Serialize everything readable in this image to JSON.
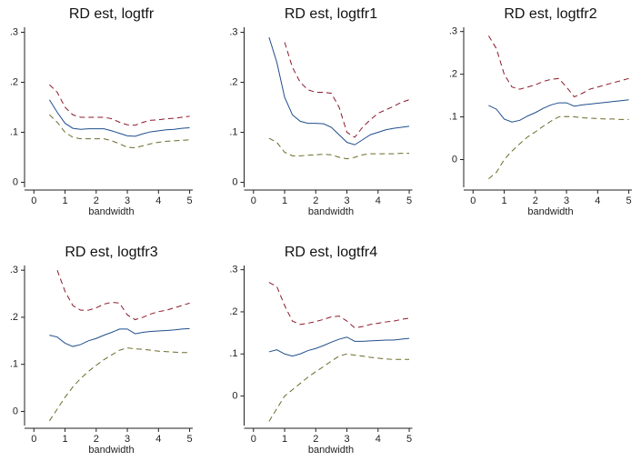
{
  "chart_data": [
    {
      "type": "line",
      "title": "RD est, logtfr",
      "xlabel": "bandwidth",
      "x": [
        0.5,
        0.75,
        1,
        1.25,
        1.5,
        1.75,
        2,
        2.25,
        2.5,
        2.75,
        3,
        3.25,
        3.5,
        3.75,
        4,
        4.25,
        4.5,
        4.75,
        5
      ],
      "xlim": [
        -0.3,
        5.1
      ],
      "xticks": [
        0,
        1,
        2,
        3,
        4,
        5
      ],
      "ylim": [
        -0.01,
        0.31
      ],
      "yticks": [
        0,
        {
          "value": 0.1,
          "label": ".1"
        },
        {
          "value": 0.2,
          "label": ".2"
        },
        {
          "value": 0.3,
          "label": ".3"
        }
      ],
      "series": [
        {
          "color": "#8b1a2b",
          "dash": true,
          "values": [
            0.195,
            0.18,
            0.15,
            0.135,
            0.13,
            0.13,
            0.13,
            0.13,
            0.127,
            0.12,
            0.115,
            0.114,
            0.12,
            0.124,
            0.125,
            0.127,
            0.128,
            0.13,
            0.132
          ]
        },
        {
          "color": "#1f4e8c",
          "dash": false,
          "values": [
            0.165,
            0.14,
            0.118,
            0.108,
            0.106,
            0.107,
            0.107,
            0.107,
            0.103,
            0.098,
            0.093,
            0.092,
            0.097,
            0.101,
            0.103,
            0.105,
            0.106,
            0.108,
            0.109
          ]
        },
        {
          "color": "#6b6b2a",
          "dash": true,
          "values": [
            0.135,
            0.12,
            0.1,
            0.09,
            0.087,
            0.087,
            0.087,
            0.087,
            0.083,
            0.077,
            0.07,
            0.069,
            0.073,
            0.077,
            0.08,
            0.082,
            0.083,
            0.084,
            0.085
          ]
        }
      ]
    },
    {
      "type": "line",
      "title": "RD est, logtfr1",
      "xlabel": "bandwidth",
      "x": [
        0.5,
        0.75,
        1,
        1.25,
        1.5,
        1.75,
        2,
        2.25,
        2.5,
        2.75,
        3,
        3.25,
        3.5,
        3.75,
        4,
        4.25,
        4.5,
        4.75,
        5
      ],
      "xlim": [
        -0.3,
        5.1
      ],
      "xticks": [
        0,
        1,
        2,
        3,
        4,
        5
      ],
      "ylim": [
        -0.01,
        0.31
      ],
      "yticks": [
        0,
        {
          "value": 0.1,
          "label": ".1"
        },
        {
          "value": 0.2,
          "label": ".2"
        },
        {
          "value": 0.3,
          "label": ".3"
        }
      ],
      "series": [
        {
          "color": "#8b1a2b",
          "dash": true,
          "values": [
            null,
            null,
            0.28,
            0.23,
            0.2,
            0.185,
            0.18,
            0.18,
            0.178,
            0.15,
            0.1,
            0.09,
            0.11,
            0.125,
            0.138,
            0.145,
            0.152,
            0.16,
            0.165
          ]
        },
        {
          "color": "#1f4e8c",
          "dash": false,
          "values": [
            0.29,
            0.24,
            0.17,
            0.135,
            0.122,
            0.118,
            0.118,
            0.117,
            0.11,
            0.095,
            0.08,
            0.075,
            0.085,
            0.095,
            0.1,
            0.105,
            0.108,
            0.11,
            0.112
          ]
        },
        {
          "color": "#6b6b2a",
          "dash": true,
          "values": [
            0.088,
            0.08,
            0.06,
            0.053,
            0.053,
            0.054,
            0.055,
            0.056,
            0.055,
            0.05,
            0.047,
            0.05,
            0.055,
            0.057,
            0.057,
            0.057,
            0.057,
            0.058,
            0.058
          ]
        }
      ]
    },
    {
      "type": "line",
      "title": "RD est, logtfr2",
      "xlabel": "bandwidth",
      "x": [
        0.5,
        0.75,
        1,
        1.25,
        1.5,
        1.75,
        2,
        2.25,
        2.5,
        2.75,
        3,
        3.25,
        3.5,
        3.75,
        4,
        4.25,
        4.5,
        4.75,
        5
      ],
      "xlim": [
        -0.3,
        5.1
      ],
      "xticks": [
        0,
        1,
        2,
        3,
        4,
        5
      ],
      "ylim": [
        -0.065,
        0.31
      ],
      "yticks": [
        0,
        {
          "value": 0.1,
          "label": ".1"
        },
        {
          "value": 0.2,
          "label": ".2"
        },
        {
          "value": 0.3,
          "label": ".3"
        }
      ],
      "series": [
        {
          "color": "#8b1a2b",
          "dash": true,
          "values": [
            0.29,
            0.26,
            0.2,
            0.17,
            0.165,
            0.17,
            0.175,
            0.183,
            0.188,
            0.19,
            0.17,
            0.147,
            0.155,
            0.165,
            0.17,
            0.175,
            0.18,
            0.185,
            0.19
          ]
        },
        {
          "color": "#1f4e8c",
          "dash": false,
          "values": [
            0.127,
            0.118,
            0.095,
            0.088,
            0.092,
            0.102,
            0.11,
            0.12,
            0.128,
            0.133,
            0.133,
            0.125,
            0.128,
            0.13,
            0.132,
            0.134,
            0.136,
            0.138,
            0.14
          ]
        },
        {
          "color": "#6b6b2a",
          "dash": true,
          "values": [
            -0.045,
            -0.03,
            0.0,
            0.02,
            0.037,
            0.053,
            0.065,
            0.078,
            0.09,
            0.1,
            0.101,
            0.1,
            0.098,
            0.097,
            0.096,
            0.095,
            0.095,
            0.094,
            0.094
          ]
        }
      ]
    },
    {
      "type": "line",
      "title": "RD est, logtfr3",
      "xlabel": "bandwidth",
      "x": [
        0.5,
        0.75,
        1,
        1.25,
        1.5,
        1.75,
        2,
        2.25,
        2.5,
        2.75,
        3,
        3.25,
        3.5,
        3.75,
        4,
        4.25,
        4.5,
        4.75,
        5
      ],
      "xlim": [
        -0.3,
        5.1
      ],
      "xticks": [
        0,
        1,
        2,
        3,
        4,
        5
      ],
      "ylim": [
        -0.03,
        0.31
      ],
      "yticks": [
        0,
        {
          "value": 0.1,
          "label": ".1"
        },
        {
          "value": 0.2,
          "label": ".2"
        },
        {
          "value": 0.3,
          "label": ".3"
        }
      ],
      "series": [
        {
          "color": "#8b1a2b",
          "dash": true,
          "values": [
            null,
            0.3,
            0.255,
            0.225,
            0.215,
            0.215,
            0.22,
            0.228,
            0.232,
            0.23,
            0.205,
            0.195,
            0.2,
            0.207,
            0.212,
            0.215,
            0.22,
            0.225,
            0.23
          ]
        },
        {
          "color": "#1f4e8c",
          "dash": false,
          "values": [
            0.162,
            0.158,
            0.145,
            0.138,
            0.142,
            0.15,
            0.155,
            0.162,
            0.168,
            0.175,
            0.175,
            0.165,
            0.168,
            0.17,
            0.171,
            0.172,
            0.173,
            0.175,
            0.176
          ]
        },
        {
          "color": "#6b6b2a",
          "dash": true,
          "values": [
            -0.02,
            0.005,
            0.03,
            0.052,
            0.07,
            0.085,
            0.098,
            0.11,
            0.12,
            0.13,
            0.135,
            0.133,
            0.132,
            0.13,
            0.128,
            0.127,
            0.126,
            0.125,
            0.125
          ]
        }
      ]
    },
    {
      "type": "line",
      "title": "RD est, logtfr4",
      "xlabel": "bandwidth",
      "x": [
        0.5,
        0.75,
        1,
        1.25,
        1.5,
        1.75,
        2,
        2.25,
        2.5,
        2.75,
        3,
        3.25,
        3.5,
        3.75,
        4,
        4.25,
        4.5,
        4.75,
        5
      ],
      "xlim": [
        -0.3,
        5.1
      ],
      "xticks": [
        0,
        1,
        2,
        3,
        4,
        5
      ],
      "ylim": [
        -0.07,
        0.31
      ],
      "yticks": [
        0,
        {
          "value": 0.1,
          "label": ".1"
        },
        {
          "value": 0.2,
          "label": ".2"
        },
        {
          "value": 0.3,
          "label": ".3"
        }
      ],
      "series": [
        {
          "color": "#8b1a2b",
          "dash": true,
          "values": [
            0.27,
            0.26,
            0.215,
            0.178,
            0.17,
            0.173,
            0.177,
            0.182,
            0.188,
            0.19,
            0.178,
            0.162,
            0.165,
            0.17,
            0.173,
            0.176,
            0.178,
            0.182,
            0.185
          ]
        },
        {
          "color": "#1f4e8c",
          "dash": false,
          "values": [
            0.105,
            0.11,
            0.1,
            0.095,
            0.1,
            0.108,
            0.113,
            0.12,
            0.128,
            0.135,
            0.14,
            0.13,
            0.13,
            0.131,
            0.132,
            0.133,
            0.133,
            0.135,
            0.137
          ]
        },
        {
          "color": "#6b6b2a",
          "dash": true,
          "values": [
            -0.06,
            -0.03,
            0.0,
            0.015,
            0.03,
            0.045,
            0.058,
            0.07,
            0.083,
            0.095,
            0.1,
            0.097,
            0.095,
            0.092,
            0.09,
            0.088,
            0.087,
            0.087,
            0.087
          ]
        }
      ]
    }
  ]
}
